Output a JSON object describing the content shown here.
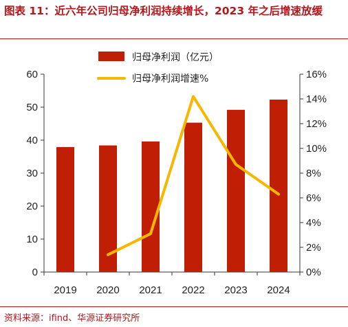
{
  "header": {
    "title": "图表 11：近六年公司归母净利润持续增长，2023 年之后增速放缓"
  },
  "footer": {
    "source": "资料来源：ifind、华源证券研究所"
  },
  "colors": {
    "accent": "#b4161b",
    "bar": "#c01f06",
    "line": "#f5b800"
  },
  "chart_data": {
    "type": "bar",
    "categories": [
      "2019",
      "2020",
      "2021",
      "2022",
      "2023",
      "2024"
    ],
    "series": [
      {
        "name": "归母净利润（亿元）",
        "type": "bar",
        "axis": "left",
        "values": [
          37.9,
          38.4,
          39.6,
          45.3,
          49.2,
          52.3
        ]
      },
      {
        "name": "归母净利润增速%",
        "type": "line",
        "axis": "right",
        "values": [
          null,
          1.4,
          3.1,
          14.2,
          8.7,
          6.3
        ]
      }
    ],
    "ylim_left": [
      0,
      60
    ],
    "yticks_left": [
      "0",
      "10",
      "20",
      "30",
      "40",
      "50",
      "60"
    ],
    "ylim_right": [
      0,
      16
    ],
    "yticks_right": [
      "0%",
      "2%",
      "4%",
      "6%",
      "8%",
      "10%",
      "12%",
      "14%",
      "16%"
    ],
    "legend_position": "top-center",
    "grid": false
  }
}
